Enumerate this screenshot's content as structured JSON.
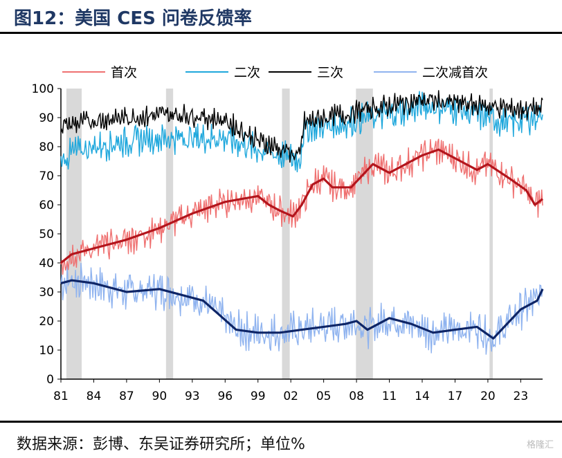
{
  "header": {
    "title": "图12：美国 CES 问卷反馈率"
  },
  "footer": {
    "source": "数据来源：彭博、东吴证券研究所；单位%",
    "watermark": "格隆汇"
  },
  "chart_data": {
    "type": "line",
    "x_ticks": [
      "81",
      "84",
      "87",
      "90",
      "93",
      "96",
      "99",
      "02",
      "05",
      "08",
      "11",
      "14",
      "17",
      "20",
      "23"
    ],
    "y_ticks": [
      0,
      10,
      20,
      30,
      40,
      50,
      60,
      70,
      80,
      90,
      100
    ],
    "xlim": [
      1981,
      2025
    ],
    "ylim": [
      0,
      100
    ],
    "grid": false,
    "legend_position": "top",
    "recessions": [
      [
        1981.5,
        1982.9
      ],
      [
        1990.6,
        1991.25
      ],
      [
        2001.2,
        2001.9
      ],
      [
        2007.95,
        2009.5
      ],
      [
        2020.15,
        2020.45
      ]
    ],
    "series": [
      {
        "name": "首次",
        "color": "#ef7070",
        "smooth_color": "#b3151c",
        "noise": 4,
        "points": [
          [
            1981.0,
            40
          ],
          [
            1982.0,
            43
          ],
          [
            1984.0,
            45
          ],
          [
            1987.0,
            48
          ],
          [
            1990.0,
            52
          ],
          [
            1993.0,
            57
          ],
          [
            1996.0,
            61
          ],
          [
            1997.5,
            62
          ],
          [
            1999.0,
            63
          ],
          [
            2000.0,
            60
          ],
          [
            2001.0,
            58
          ],
          [
            2002.2,
            56
          ],
          [
            2003.0,
            60
          ],
          [
            2004.0,
            67
          ],
          [
            2005.0,
            69
          ],
          [
            2005.8,
            66
          ],
          [
            2007.5,
            66
          ],
          [
            2009.5,
            74
          ],
          [
            2011.0,
            71
          ],
          [
            2012.5,
            74
          ],
          [
            2014.0,
            77
          ],
          [
            2015.5,
            79
          ],
          [
            2017.5,
            75
          ],
          [
            2019.0,
            72
          ],
          [
            2020.0,
            74
          ],
          [
            2022.0,
            69
          ],
          [
            2023.5,
            65
          ],
          [
            2024.3,
            60
          ],
          [
            2025.0,
            62
          ]
        ]
      },
      {
        "name": "二次",
        "color": "#1ea7dc",
        "noise": 4,
        "points": [
          [
            1981.0,
            75
          ],
          [
            1982.0,
            78
          ],
          [
            1984.0,
            80
          ],
          [
            1987.0,
            82
          ],
          [
            1990.0,
            83
          ],
          [
            1993.0,
            83
          ],
          [
            1996.0,
            83
          ],
          [
            1999.0,
            79
          ],
          [
            2002.0,
            76
          ],
          [
            2002.8,
            75
          ],
          [
            2003.2,
            86
          ],
          [
            2005.0,
            87
          ],
          [
            2007.0,
            88
          ],
          [
            2009.0,
            90
          ],
          [
            2011.0,
            91
          ],
          [
            2014.0,
            94
          ],
          [
            2017.0,
            93
          ],
          [
            2020.0,
            90
          ],
          [
            2022.0,
            88
          ],
          [
            2025.0,
            91
          ]
        ]
      },
      {
        "name": "三次",
        "color": "#000000",
        "noise": 3,
        "points": [
          [
            1981.0,
            87
          ],
          [
            1984.0,
            89
          ],
          [
            1987.0,
            90
          ],
          [
            1990.0,
            91
          ],
          [
            1993.0,
            91
          ],
          [
            1996.0,
            89
          ],
          [
            1999.0,
            82
          ],
          [
            2002.0,
            78
          ],
          [
            2002.8,
            76
          ],
          [
            2003.2,
            88
          ],
          [
            2005.0,
            90
          ],
          [
            2007.0,
            91
          ],
          [
            2009.0,
            93
          ],
          [
            2011.0,
            94
          ],
          [
            2014.0,
            96
          ],
          [
            2017.0,
            95
          ],
          [
            2020.0,
            94
          ],
          [
            2022.0,
            93
          ],
          [
            2025.0,
            93
          ]
        ]
      },
      {
        "name": "二次减首次",
        "color": "#8fb3ef",
        "smooth_color": "#0e2566",
        "noise": 5,
        "points": [
          [
            1981.0,
            33
          ],
          [
            1982.0,
            34
          ],
          [
            1984.0,
            33
          ],
          [
            1987.0,
            30
          ],
          [
            1990.0,
            31
          ],
          [
            1992.0,
            29
          ],
          [
            1994.0,
            27
          ],
          [
            1995.5,
            22
          ],
          [
            1997.0,
            17
          ],
          [
            1999.0,
            16
          ],
          [
            2001.0,
            16
          ],
          [
            2003.0,
            17
          ],
          [
            2005.0,
            18
          ],
          [
            2007.0,
            19
          ],
          [
            2008.0,
            20
          ],
          [
            2009.0,
            17
          ],
          [
            2011.0,
            21
          ],
          [
            2013.0,
            19
          ],
          [
            2015.0,
            16
          ],
          [
            2017.0,
            17
          ],
          [
            2019.0,
            18
          ],
          [
            2020.5,
            14
          ],
          [
            2021.5,
            18
          ],
          [
            2023.0,
            24
          ],
          [
            2024.5,
            27
          ],
          [
            2025.0,
            31
          ]
        ]
      }
    ]
  }
}
